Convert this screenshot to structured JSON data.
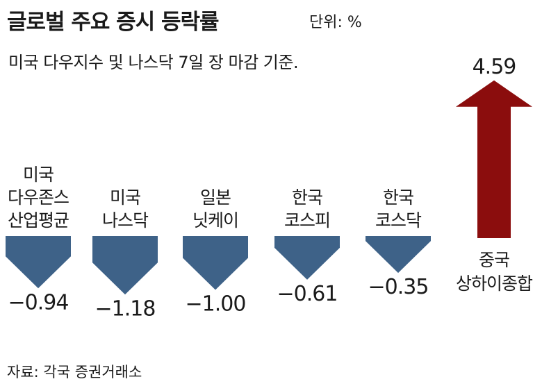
{
  "title": "글로벌 주요 증시 등락률",
  "unit": "단위: %",
  "subtitle": "미국 다우지수 및 나스닥 7일 장 마감 기준.",
  "source": "자료: 각국 증권거래소",
  "chart_data": {
    "type": "bar",
    "title": "글로벌 주요 증시 등락률",
    "categories": [
      [
        "미국",
        "다우존스",
        "산업평균"
      ],
      [
        "미국",
        "나스닥"
      ],
      [
        "일본",
        "닛케이"
      ],
      [
        "한국",
        "코스피"
      ],
      [
        "한국",
        "코스닥"
      ],
      [
        "중국",
        "상하이종합"
      ]
    ],
    "values": [
      -0.94,
      -1.18,
      -1.0,
      -0.61,
      -0.35,
      4.59
    ],
    "value_labels": [
      "−0.94",
      "−1.18",
      "−1.00",
      "−0.61",
      "−0.35",
      "4.59"
    ],
    "colors": {
      "negative": "#3e6288",
      "positive": "#8b0d0d"
    }
  }
}
